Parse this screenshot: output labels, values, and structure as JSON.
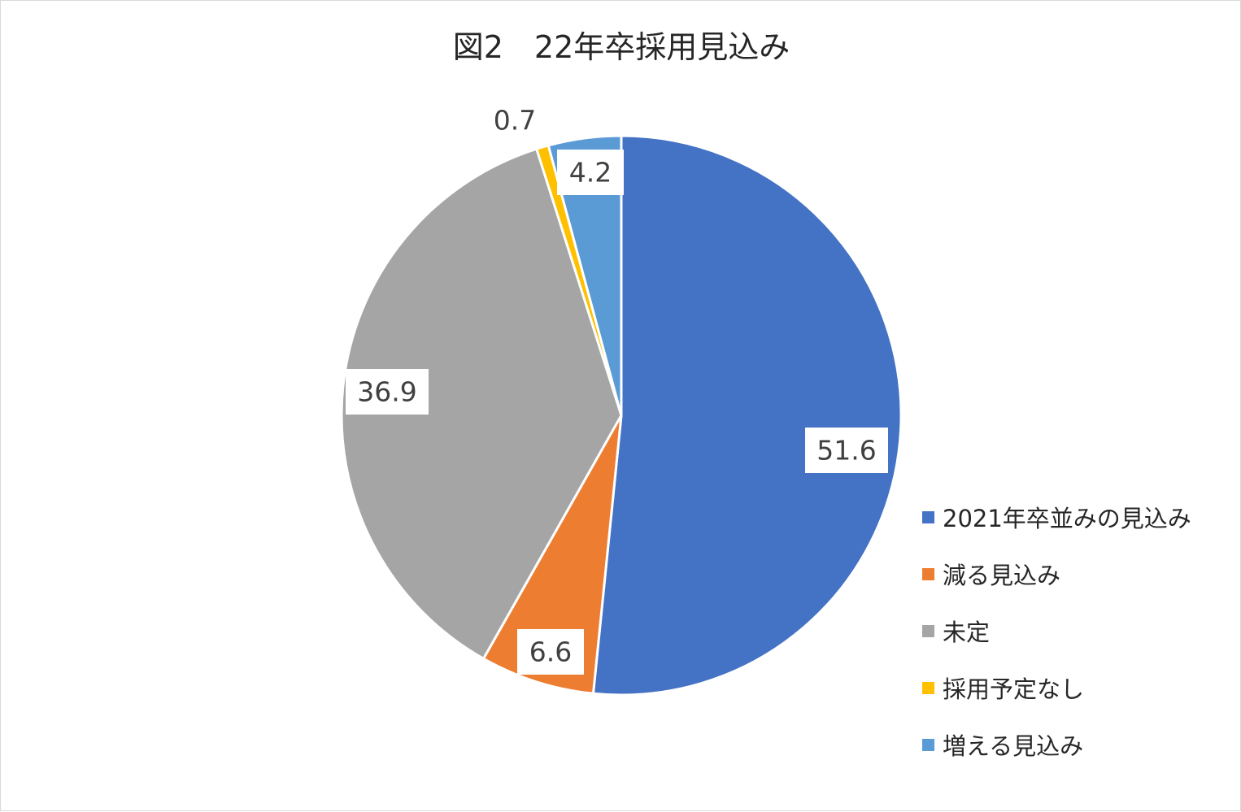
{
  "chart_data": {
    "type": "pie",
    "title": "図2　22年卒採用見込み",
    "categories": [
      "2021年卒並みの見込み",
      "減る見込み",
      "未定",
      "採用予定なし",
      "増える見込み"
    ],
    "values": [
      51.6,
      6.6,
      36.9,
      0.7,
      4.2
    ],
    "colors": [
      "#4472c4",
      "#ed7d31",
      "#a5a5a5",
      "#ffc000",
      "#5b9bd5"
    ],
    "data_labels": [
      "51.6",
      "6.6",
      "36.9",
      "0.7",
      "4.2"
    ],
    "legend_position": "right"
  }
}
